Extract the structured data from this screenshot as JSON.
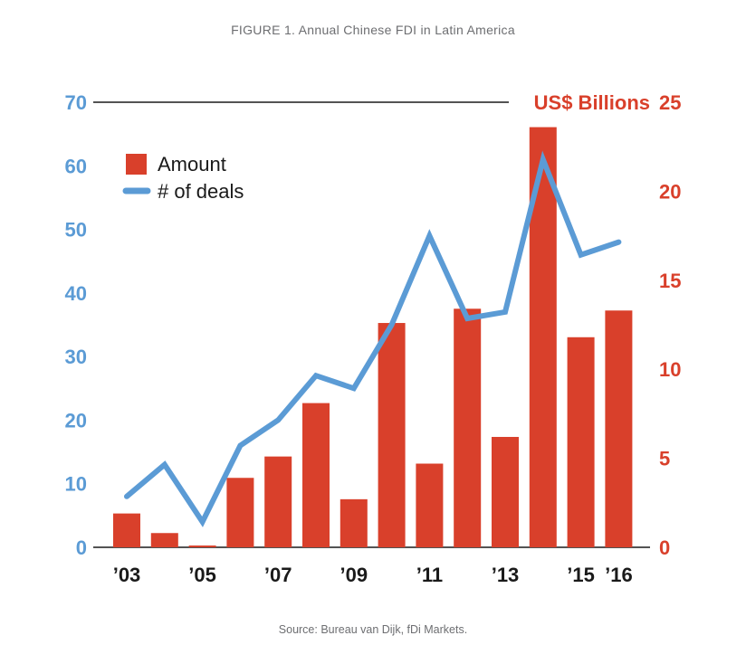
{
  "title": "FIGURE 1. Annual Chinese FDI in Latin America",
  "source": "Source: Bureau van Dijk, fDi Markets.",
  "colors": {
    "bars": "#d9402b",
    "line": "#5b9bd5",
    "left_axis": "#5b9bd5",
    "right_axis": "#d9402b"
  },
  "chart_data": {
    "type": "bar",
    "years": [
      2003,
      2004,
      2005,
      2006,
      2007,
      2008,
      2009,
      2010,
      2011,
      2012,
      2013,
      2014,
      2015,
      2016
    ],
    "x_tick_labels": [
      "’03",
      "’05",
      "’07",
      "’09",
      "’11",
      "’13",
      "’15",
      "’16"
    ],
    "x_tick_years": [
      2003,
      2005,
      2007,
      2009,
      2011,
      2013,
      2015,
      2016
    ],
    "series": [
      {
        "name": "Amount",
        "type": "bar",
        "axis": "right",
        "values": [
          1.9,
          0.8,
          0.1,
          3.9,
          5.1,
          8.1,
          2.7,
          12.6,
          4.7,
          13.4,
          6.2,
          23.6,
          11.8,
          13.3
        ]
      },
      {
        "name": "# of deals",
        "type": "line",
        "axis": "left",
        "values": [
          8,
          13,
          4,
          16,
          20,
          27,
          25,
          35,
          49,
          36,
          37,
          61,
          46,
          48
        ]
      }
    ],
    "left_axis": {
      "ylim": [
        0,
        70
      ],
      "ticks": [
        "0",
        "10",
        "20",
        "30",
        "40",
        "50",
        "60",
        "70"
      ]
    },
    "right_axis": {
      "label": "US$ Billions",
      "ylim": [
        0,
        25
      ],
      "ticks": [
        "0",
        "5",
        "10",
        "15",
        "20",
        "25"
      ]
    },
    "legend_position": "top-left",
    "grid": false
  }
}
